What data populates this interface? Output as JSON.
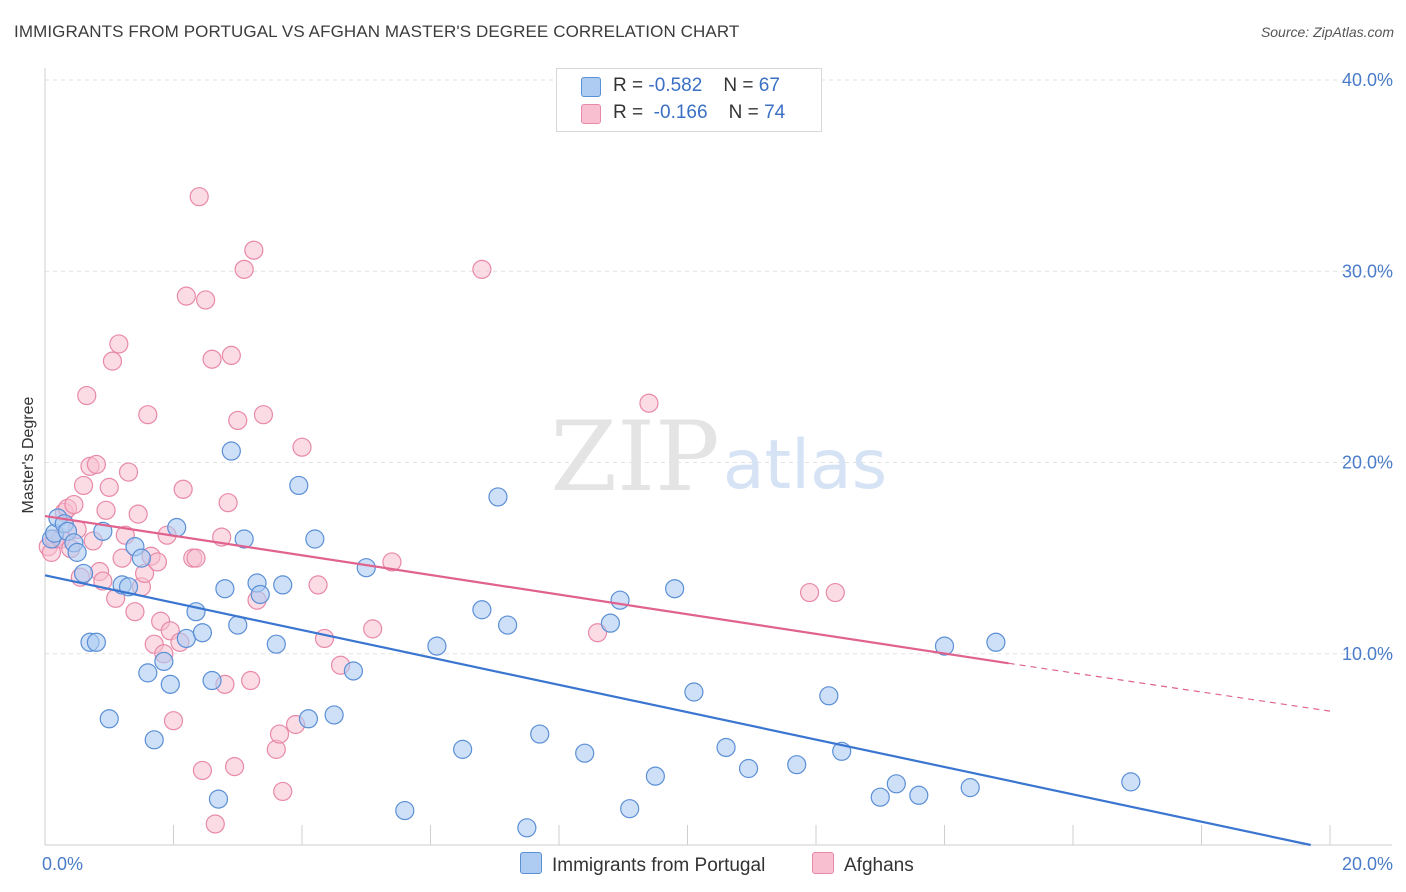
{
  "header": {
    "title": "IMMIGRANTS FROM PORTUGAL VS AFGHAN MASTER'S DEGREE CORRELATION CHART",
    "source": "Source: ZipAtlas.com"
  },
  "watermark": {
    "zip": "ZIP",
    "atlas": "atlas"
  },
  "legend": {
    "rows": [
      {
        "r_label": "R =",
        "r_value": "-0.582",
        "n_label": "N =",
        "n_value": "67"
      },
      {
        "r_label": "R =",
        "r_value": "-0.166",
        "n_label": "N =",
        "n_value": "74"
      }
    ]
  },
  "bottom_legend": [
    "Immigrants from Portugal",
    "Afghans"
  ],
  "colors": {
    "blue_fill": "#aecbf2",
    "blue_stroke": "#5b8fd6",
    "blue_line": "#3a76d0",
    "pink_fill": "#f7bfd0",
    "pink_stroke": "#e889a8",
    "pink_line": "#e0628e",
    "grid": "#e2e2e2",
    "axis_label": "#4a7cc9"
  },
  "chart_data": {
    "type": "scatter",
    "title": "IMMIGRANTS FROM PORTUGAL VS AFGHAN MASTER'S DEGREE CORRELATION CHART",
    "xlabel": "",
    "ylabel": "Master's Degree",
    "xlim": [
      0,
      20
    ],
    "ylim": [
      0,
      40
    ],
    "x_tick_labels": [
      "0.0%",
      "20.0%"
    ],
    "y_ticks": [
      10,
      20,
      30,
      40
    ],
    "y_tick_labels": [
      "10.0%",
      "20.0%",
      "30.0%",
      "40.0%"
    ],
    "grid": true,
    "legend_placement": "top-center",
    "series": [
      {
        "name": "Immigrants from Portugal",
        "r": -0.582,
        "n": 67,
        "trend": {
          "x1": 0,
          "y1": 14.1,
          "x2": 19.7,
          "y2": 0.0
        },
        "points": [
          [
            0.1,
            16.0
          ],
          [
            0.15,
            16.3
          ],
          [
            0.2,
            17.1
          ],
          [
            0.3,
            16.8
          ],
          [
            0.35,
            16.4
          ],
          [
            0.45,
            15.8
          ],
          [
            0.5,
            15.3
          ],
          [
            0.6,
            14.2
          ],
          [
            0.7,
            10.6
          ],
          [
            0.8,
            10.6
          ],
          [
            0.9,
            16.4
          ],
          [
            1.0,
            6.6
          ],
          [
            1.2,
            13.6
          ],
          [
            1.3,
            13.5
          ],
          [
            1.4,
            15.6
          ],
          [
            1.5,
            15.0
          ],
          [
            1.6,
            9.0
          ],
          [
            1.7,
            5.5
          ],
          [
            1.85,
            9.6
          ],
          [
            1.95,
            8.4
          ],
          [
            2.05,
            16.6
          ],
          [
            2.2,
            10.8
          ],
          [
            2.35,
            12.2
          ],
          [
            2.45,
            11.1
          ],
          [
            2.6,
            8.6
          ],
          [
            2.7,
            2.4
          ],
          [
            2.8,
            13.4
          ],
          [
            2.9,
            20.6
          ],
          [
            3.0,
            11.5
          ],
          [
            3.1,
            16.0
          ],
          [
            3.3,
            13.7
          ],
          [
            3.35,
            13.1
          ],
          [
            3.6,
            10.5
          ],
          [
            3.7,
            13.6
          ],
          [
            3.95,
            18.8
          ],
          [
            4.1,
            6.6
          ],
          [
            4.2,
            16.0
          ],
          [
            4.5,
            6.8
          ],
          [
            4.8,
            9.1
          ],
          [
            5.0,
            14.5
          ],
          [
            5.6,
            1.8
          ],
          [
            6.1,
            10.4
          ],
          [
            6.5,
            5.0
          ],
          [
            6.8,
            12.3
          ],
          [
            7.05,
            18.2
          ],
          [
            7.2,
            11.5
          ],
          [
            7.5,
            0.9
          ],
          [
            7.7,
            5.8
          ],
          [
            8.4,
            4.8
          ],
          [
            8.8,
            11.6
          ],
          [
            8.95,
            12.8
          ],
          [
            9.1,
            1.9
          ],
          [
            9.5,
            3.6
          ],
          [
            9.8,
            13.4
          ],
          [
            10.1,
            8.0
          ],
          [
            10.6,
            5.1
          ],
          [
            10.95,
            4.0
          ],
          [
            11.7,
            4.2
          ],
          [
            12.2,
            7.8
          ],
          [
            12.4,
            4.9
          ],
          [
            13.0,
            2.5
          ],
          [
            13.25,
            3.2
          ],
          [
            13.6,
            2.6
          ],
          [
            14.0,
            10.4
          ],
          [
            14.4,
            3.0
          ],
          [
            14.8,
            10.6
          ],
          [
            16.9,
            3.3
          ]
        ]
      },
      {
        "name": "Afghans",
        "r": -0.166,
        "n": 74,
        "trend": {
          "x1": 0,
          "y1": 17.2,
          "x2": 15.0,
          "y2": 9.5,
          "dash_x2": 20.0,
          "dash_y2": 7.0
        },
        "points": [
          [
            0.05,
            15.6
          ],
          [
            0.1,
            15.3
          ],
          [
            0.15,
            16.0
          ],
          [
            0.25,
            16.0
          ],
          [
            0.3,
            17.4
          ],
          [
            0.35,
            17.6
          ],
          [
            0.4,
            15.5
          ],
          [
            0.45,
            17.8
          ],
          [
            0.5,
            16.5
          ],
          [
            0.55,
            14.0
          ],
          [
            0.6,
            18.8
          ],
          [
            0.65,
            23.5
          ],
          [
            0.7,
            19.8
          ],
          [
            0.75,
            15.9
          ],
          [
            0.8,
            19.9
          ],
          [
            0.85,
            14.3
          ],
          [
            0.9,
            13.8
          ],
          [
            0.95,
            17.5
          ],
          [
            1.0,
            18.7
          ],
          [
            1.05,
            25.3
          ],
          [
            1.1,
            12.9
          ],
          [
            1.15,
            26.2
          ],
          [
            1.2,
            15.0
          ],
          [
            1.25,
            16.2
          ],
          [
            1.3,
            19.5
          ],
          [
            1.4,
            12.2
          ],
          [
            1.45,
            17.3
          ],
          [
            1.5,
            13.5
          ],
          [
            1.55,
            14.2
          ],
          [
            1.6,
            22.5
          ],
          [
            1.65,
            15.1
          ],
          [
            1.7,
            10.5
          ],
          [
            1.75,
            14.8
          ],
          [
            1.8,
            11.7
          ],
          [
            1.85,
            10.0
          ],
          [
            1.9,
            16.2
          ],
          [
            1.95,
            11.2
          ],
          [
            2.0,
            6.5
          ],
          [
            2.1,
            10.6
          ],
          [
            2.15,
            18.6
          ],
          [
            2.2,
            28.7
          ],
          [
            2.3,
            15.0
          ],
          [
            2.35,
            15.0
          ],
          [
            2.4,
            33.9
          ],
          [
            2.45,
            3.9
          ],
          [
            2.5,
            28.5
          ],
          [
            2.6,
            25.4
          ],
          [
            2.65,
            1.1
          ],
          [
            2.75,
            16.1
          ],
          [
            2.8,
            8.4
          ],
          [
            2.85,
            17.9
          ],
          [
            2.9,
            25.6
          ],
          [
            2.95,
            4.1
          ],
          [
            3.0,
            22.2
          ],
          [
            3.1,
            30.1
          ],
          [
            3.2,
            8.6
          ],
          [
            3.25,
            31.1
          ],
          [
            3.3,
            12.8
          ],
          [
            3.4,
            22.5
          ],
          [
            3.6,
            5.0
          ],
          [
            3.65,
            5.8
          ],
          [
            3.7,
            2.8
          ],
          [
            3.9,
            6.3
          ],
          [
            4.0,
            20.8
          ],
          [
            4.25,
            13.6
          ],
          [
            4.35,
            10.8
          ],
          [
            4.6,
            9.4
          ],
          [
            5.1,
            11.3
          ],
          [
            5.4,
            14.8
          ],
          [
            6.8,
            30.1
          ],
          [
            8.6,
            11.1
          ],
          [
            9.4,
            23.1
          ],
          [
            11.9,
            13.2
          ],
          [
            12.3,
            13.2
          ]
        ]
      }
    ]
  }
}
